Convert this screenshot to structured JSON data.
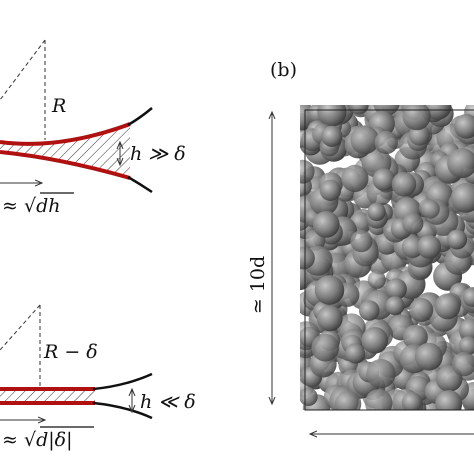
{
  "panel_a": {
    "top": {
      "radius_label": "R",
      "gap_label": "h ≫ δ",
      "width_label": "≈ √dh"
    },
    "bottom": {
      "radius_label": "R − δ",
      "gap_label": "h ≪ δ",
      "width_label": "≈ √d|δ|"
    }
  },
  "panel_b": {
    "label": "(b)",
    "height_label": "≃ 10d"
  }
}
